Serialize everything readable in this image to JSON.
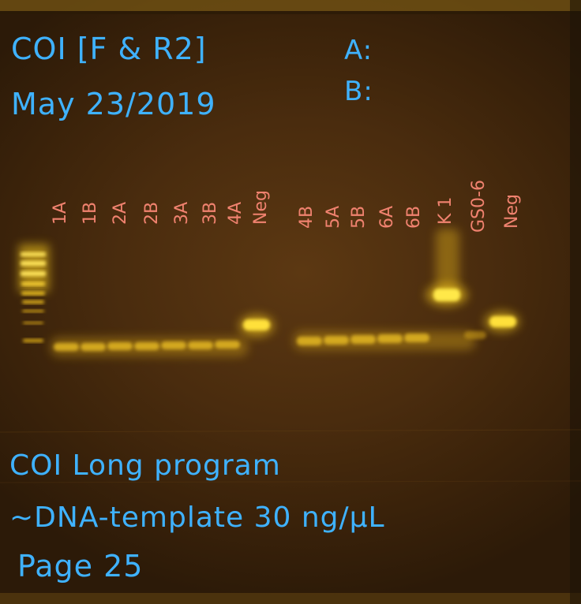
{
  "header": {
    "primer": "COI [F & R2]",
    "date": "May 23/2019",
    "slot_a": "A:",
    "slot_b": "B:"
  },
  "lanes_left": [
    "1A",
    "1B",
    "2A",
    "2B",
    "3A",
    "3B",
    "4A",
    "Neg"
  ],
  "lanes_right": [
    "4B",
    "5A",
    "5B",
    "6A",
    "6B",
    "K 1",
    "GS0-6",
    "Neg"
  ],
  "notes": {
    "line1": "COI Long program",
    "line2": "~DNA-template 30 ng/µL",
    "line3": "Page 25"
  },
  "colors": {
    "gel_background": "#4a2c0e",
    "band_yellow": "#ffd21a",
    "handwriting_blue": "#3fb2ff",
    "lane_label_salmon": "#f0826f"
  }
}
